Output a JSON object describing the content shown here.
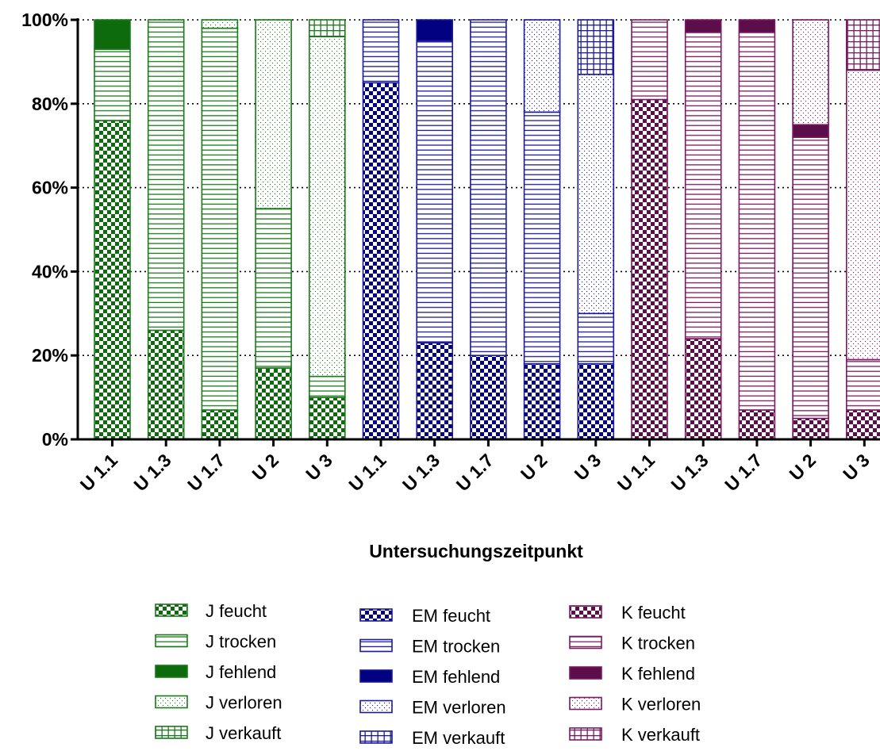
{
  "chart_data": {
    "type": "bar",
    "stacked": true,
    "categories": [
      "U1.1",
      "U1.3",
      "U1.7",
      "U2",
      "U3",
      "U1.1",
      "U1.3",
      "U1.7",
      "U2",
      "U3",
      "U1.1",
      "U1.3",
      "U1.7",
      "U2",
      "U3"
    ],
    "groups": [
      {
        "prefix": "J",
        "color": "#1a7a1a",
        "strong_color": "#0d6b0d",
        "series": [
          {
            "name": "J feucht",
            "values": [
              76,
              26,
              7,
              17,
              10
            ]
          },
          {
            "name": "J trocken",
            "values": [
              17,
              74,
              91,
              38,
              5
            ]
          },
          {
            "name": "J fehlend",
            "values": [
              7,
              0,
              0,
              0,
              0
            ]
          },
          {
            "name": "J verloren",
            "values": [
              0,
              0,
              2,
              45,
              81
            ]
          },
          {
            "name": "J verkauft",
            "values": [
              0,
              0,
              0,
              0,
              4
            ]
          }
        ]
      },
      {
        "prefix": "EM",
        "color": "#1a1a9a",
        "strong_color": "#000080",
        "series": [
          {
            "name": "EM feucht",
            "values": [
              85,
              23,
              20,
              18,
              18
            ]
          },
          {
            "name": "EM trocken",
            "values": [
              15,
              72,
              80,
              60,
              12
            ]
          },
          {
            "name": "EM fehlend",
            "values": [
              0,
              5,
              0,
              0,
              0
            ]
          },
          {
            "name": "EM verloren",
            "values": [
              0,
              0,
              0,
              22,
              57
            ]
          },
          {
            "name": "EM verkauft",
            "values": [
              0,
              0,
              0,
              0,
              13
            ]
          }
        ]
      },
      {
        "prefix": "K",
        "color": "#7a1a60",
        "strong_color": "#5c0e4a",
        "series": [
          {
            "name": "K feucht",
            "values": [
              81,
              24,
              7,
              5,
              7
            ]
          },
          {
            "name": "K trocken",
            "values": [
              19,
              73,
              90,
              67,
              12
            ]
          },
          {
            "name": "K fehlend",
            "values": [
              0,
              3,
              3,
              3,
              0
            ]
          },
          {
            "name": "K verloren",
            "values": [
              0,
              0,
              0,
              25,
              69
            ]
          },
          {
            "name": "K verkauft",
            "values": [
              0,
              0,
              0,
              0,
              12
            ]
          }
        ]
      }
    ],
    "patterns": [
      "checker",
      "hlines",
      "solid",
      "dots",
      "grid"
    ],
    "ylim": [
      0,
      100
    ],
    "yticks": [
      "0%",
      "20%",
      "40%",
      "60%",
      "80%",
      "100%"
    ],
    "xlabel": "Untersuchungszeitpunkt",
    "ylabel": "",
    "grid": "dotted horizontal",
    "legend_position": "bottom"
  }
}
